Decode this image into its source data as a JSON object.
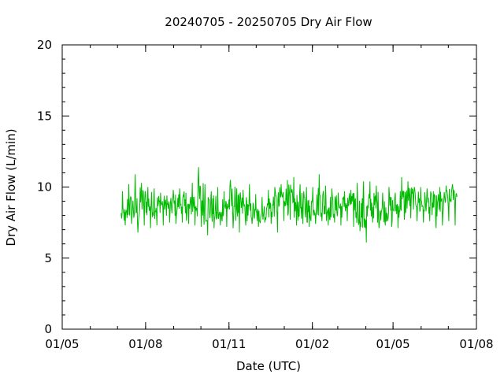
{
  "chart_data": {
    "type": "line",
    "title": "20240705 - 20250705 Dry Air Flow",
    "xlabel": "Date (UTC)",
    "ylabel": "Dry Air Flow (L/min)",
    "x_ticks": [
      "01/05",
      "01/08",
      "01/11",
      "01/02",
      "01/05",
      "01/08"
    ],
    "x_tick_dates": [
      "2024-05-01",
      "2024-08-01",
      "2024-11-01",
      "2025-02-01",
      "2025-05-01",
      "2025-08-01"
    ],
    "y_ticks": [
      "0",
      "5",
      "10",
      "15",
      "20"
    ],
    "xlim": [
      "2024-05-01",
      "2025-08-01"
    ],
    "ylim": [
      0,
      20
    ],
    "grid": false,
    "series": [
      {
        "color": "#00bb00",
        "x": [
          "2024-07-05",
          "2024-07-12",
          "2024-07-19",
          "2024-07-26",
          "2024-08-02",
          "2024-08-09",
          "2024-08-16",
          "2024-08-23",
          "2024-08-30",
          "2024-09-06",
          "2024-09-13",
          "2024-09-20",
          "2024-09-27",
          "2024-10-04",
          "2024-10-11",
          "2024-10-18",
          "2024-10-25",
          "2024-11-01",
          "2024-11-08",
          "2024-11-15",
          "2024-11-22",
          "2024-11-29",
          "2024-12-06",
          "2024-12-13",
          "2024-12-20",
          "2024-12-27",
          "2025-01-03",
          "2025-01-10",
          "2025-01-17",
          "2025-01-24",
          "2025-01-31",
          "2025-02-07",
          "2025-02-14",
          "2025-02-21",
          "2025-02-28",
          "2025-03-07",
          "2025-03-14",
          "2025-03-21",
          "2025-03-28",
          "2025-04-04",
          "2025-04-11",
          "2025-04-18",
          "2025-04-25",
          "2025-05-02",
          "2025-05-09",
          "2025-05-16",
          "2025-05-23",
          "2025-05-30",
          "2025-06-06",
          "2025-06-13",
          "2025-06-20",
          "2025-06-27",
          "2025-07-04"
        ],
        "y": [
          8.0,
          8.6,
          8.4,
          9.0,
          8.8,
          8.7,
          8.8,
          8.6,
          8.7,
          8.9,
          8.5,
          8.9,
          9.1,
          8.6,
          8.4,
          8.0,
          8.7,
          8.9,
          8.6,
          8.5,
          8.3,
          8.0,
          8.2,
          8.6,
          8.8,
          9.3,
          9.1,
          8.6,
          8.7,
          8.4,
          8.8,
          9.0,
          8.7,
          8.6,
          8.6,
          8.8,
          8.9,
          8.3,
          8.0,
          8.7,
          8.6,
          8.4,
          8.5,
          8.6,
          9.0,
          9.2,
          9.1,
          8.8,
          8.9,
          8.6,
          8.7,
          9.1,
          9.4
        ],
        "min": [
          7.3,
          7.4,
          6.8,
          7.3,
          7.1,
          7.3,
          7.3,
          7.5,
          7.4,
          7.5,
          7.4,
          7.3,
          7.2,
          6.6,
          7.1,
          7.3,
          7.2,
          7.1,
          6.8,
          7.3,
          7.4,
          7.2,
          7.5,
          7.4,
          6.8,
          7.6,
          7.7,
          7.3,
          7.4,
          7.2,
          7.4,
          7.6,
          7.3,
          7.5,
          7.3,
          7.6,
          7.2,
          6.9,
          6.1,
          7.5,
          7.1,
          7.3,
          7.2,
          7.1,
          7.7,
          7.8,
          7.6,
          7.5,
          7.6,
          7.1,
          7.3,
          7.6,
          7.3
        ],
        "max": [
          9.7,
          10.2,
          10.9,
          10.3,
          10.0,
          9.9,
          9.6,
          9.4,
          9.8,
          9.9,
          9.6,
          10.3,
          11.4,
          10.2,
          9.7,
          10.0,
          9.7,
          10.5,
          9.9,
          9.8,
          10.2,
          9.5,
          9.3,
          9.8,
          10.0,
          10.2,
          10.5,
          10.7,
          10.2,
          10.0,
          10.0,
          10.9,
          10.1,
          9.9,
          9.6,
          9.7,
          9.8,
          10.3,
          10.4,
          10.4,
          10.1,
          9.6,
          10.0,
          9.6,
          10.7,
          10.4,
          10.0,
          10.0,
          9.9,
          9.7,
          10.0,
          10.1,
          10.2
        ]
      }
    ]
  }
}
